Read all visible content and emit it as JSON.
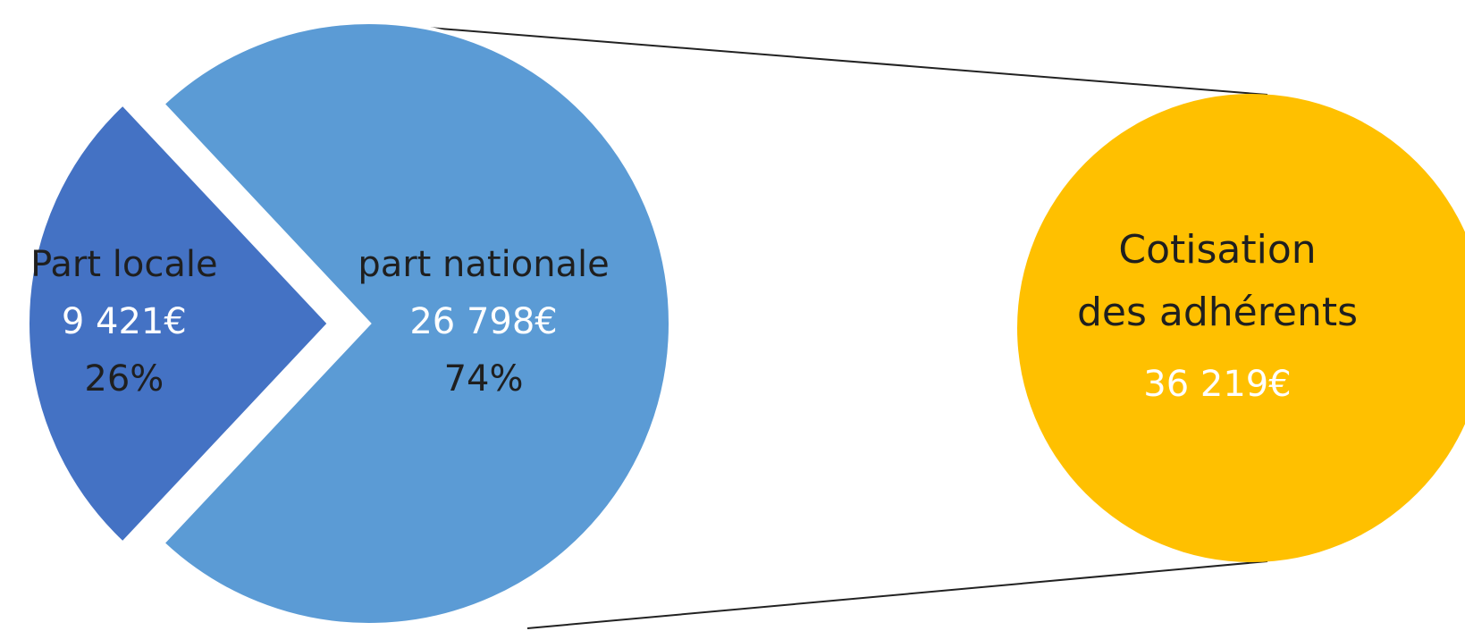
{
  "chart_data": {
    "type": "pie",
    "categories": [
      "Part locale",
      "part nationale"
    ],
    "values": [
      26,
      74
    ],
    "value_labels": [
      "26%",
      "74%"
    ],
    "amounts": [
      9421,
      26798
    ],
    "amount_labels": [
      "9 421€",
      "26 798€"
    ],
    "colors": [
      "#4472c4",
      "#5b9bd5"
    ],
    "total": {
      "label_lines": [
        "Cotisation",
        "des adhérents"
      ],
      "value": 36219,
      "value_label": "36 219€",
      "color": "#ffc000"
    }
  }
}
